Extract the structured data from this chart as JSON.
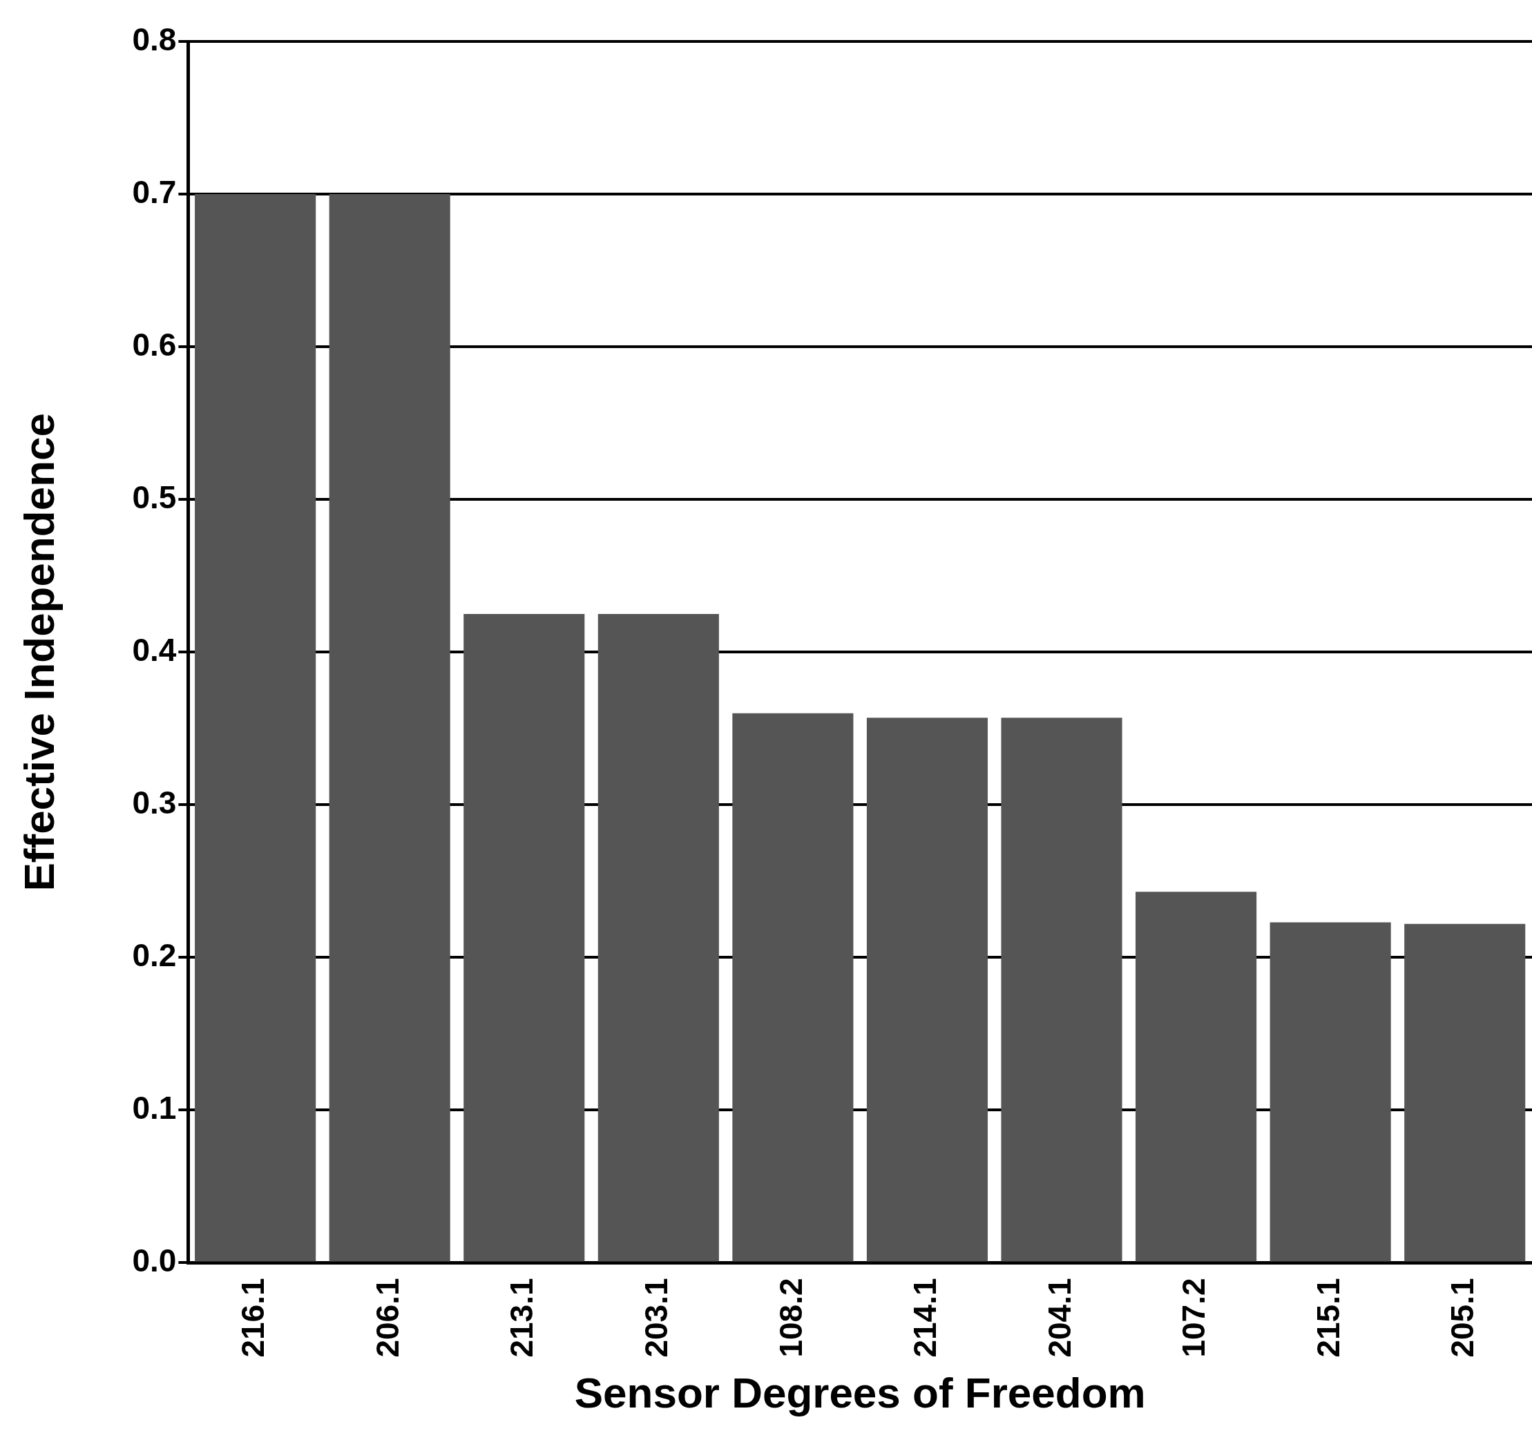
{
  "chart_data": {
    "type": "bar",
    "xlabel": "Sensor Degrees of Freedom",
    "ylabel": "Effective Independence",
    "categories": [
      "216.1",
      "206.1",
      "213.1",
      "203.1",
      "108.2",
      "214.1",
      "204.1",
      "107.2",
      "215.1",
      "205.1"
    ],
    "values": [
      0.7,
      0.7,
      0.425,
      0.425,
      0.36,
      0.357,
      0.357,
      0.243,
      0.223,
      0.222
    ],
    "color": "#555555",
    "ylim": [
      0,
      0.8
    ],
    "yticks": [
      "0.0",
      0.1,
      0.2,
      0.3,
      0.4,
      0.5,
      0.6,
      0.7,
      0.8
    ],
    "grid": "y",
    "legend": false
  }
}
